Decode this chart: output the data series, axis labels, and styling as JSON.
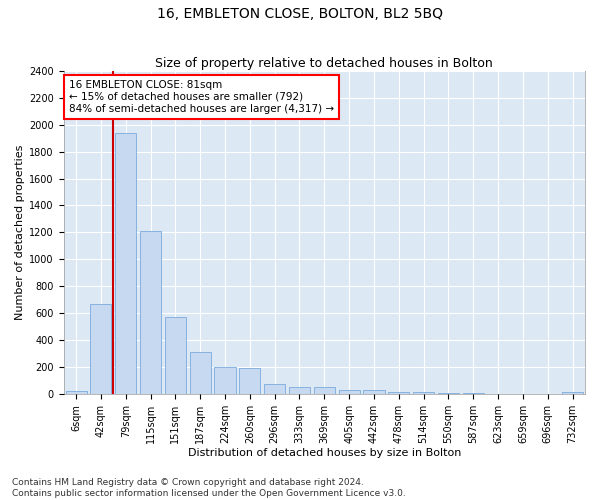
{
  "title": "16, EMBLETON CLOSE, BOLTON, BL2 5BQ",
  "subtitle": "Size of property relative to detached houses in Bolton",
  "xlabel": "Distribution of detached houses by size in Bolton",
  "ylabel": "Number of detached properties",
  "footnote1": "Contains HM Land Registry data © Crown copyright and database right 2024.",
  "footnote2": "Contains public sector information licensed under the Open Government Licence v3.0.",
  "annotation_title": "16 EMBLETON CLOSE: 81sqm",
  "annotation_line1": "← 15% of detached houses are smaller (792)",
  "annotation_line2": "84% of semi-detached houses are larger (4,317) →",
  "bar_labels": [
    "6sqm",
    "42sqm",
    "79sqm",
    "115sqm",
    "151sqm",
    "187sqm",
    "224sqm",
    "260sqm",
    "296sqm",
    "333sqm",
    "369sqm",
    "405sqm",
    "442sqm",
    "478sqm",
    "514sqm",
    "550sqm",
    "587sqm",
    "623sqm",
    "659sqm",
    "696sqm",
    "732sqm"
  ],
  "bar_values": [
    25,
    670,
    1940,
    1210,
    575,
    310,
    200,
    195,
    75,
    50,
    50,
    35,
    30,
    20,
    15,
    10,
    8,
    5,
    5,
    5,
    15
  ],
  "bar_color": "#c6d9f0",
  "bar_edge_color": "#7aaadc",
  "vline_color": "#cc0000",
  "vline_x_index": 2,
  "ylim": [
    0,
    2400
  ],
  "yticks": [
    0,
    200,
    400,
    600,
    800,
    1000,
    1200,
    1400,
    1600,
    1800,
    2000,
    2200,
    2400
  ],
  "bg_color": "#dce9f5",
  "grid_color": "#ffffff",
  "title_fontsize": 10,
  "subtitle_fontsize": 9,
  "axis_label_fontsize": 8,
  "tick_fontsize": 7,
  "annotation_fontsize": 7.5,
  "footnote_fontsize": 6.5
}
